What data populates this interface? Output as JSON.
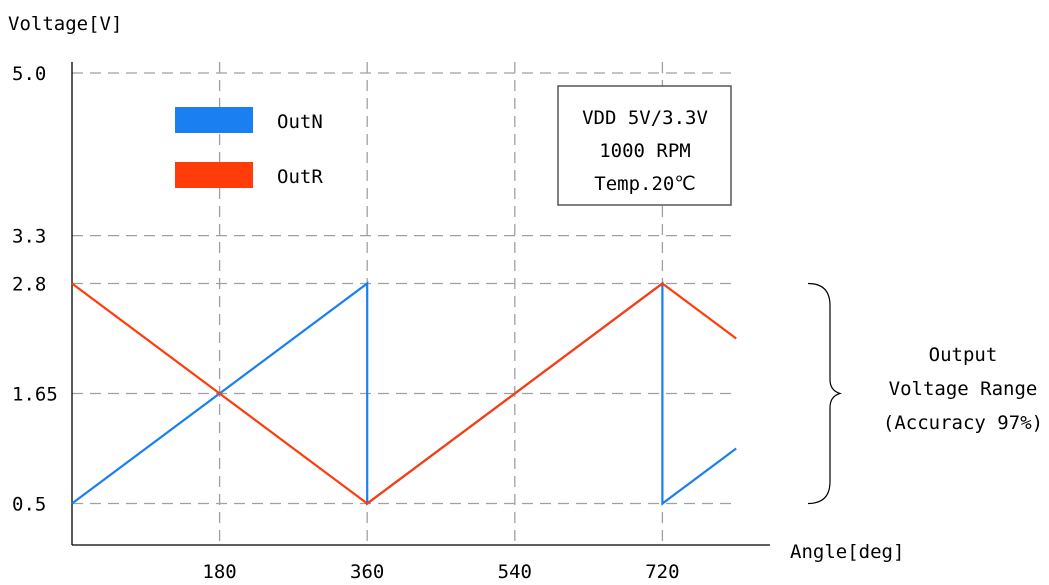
{
  "chart_data": {
    "type": "line",
    "ylabel": "Voltage[V]",
    "xlabel": "Angle[deg]",
    "xlim": [
      0,
      810
    ],
    "ylim": [
      0,
      5.0
    ],
    "x_ticks": [
      {
        "value": 180,
        "label": "180"
      },
      {
        "value": 360,
        "label": "360"
      },
      {
        "value": 540,
        "label": "540"
      },
      {
        "value": 720,
        "label": "720"
      }
    ],
    "y_ticks": [
      {
        "value": 5.0,
        "label": "5.0"
      },
      {
        "value": 3.3,
        "label": "3.3"
      },
      {
        "value": 2.8,
        "label": "2.8"
      },
      {
        "value": 1.65,
        "label": "1.65"
      },
      {
        "value": 0.5,
        "label": "0.5"
      }
    ],
    "grid": true,
    "legend_position": "top-left",
    "series": [
      {
        "name": "OutN",
        "color": "#1a7ff0",
        "points": [
          [
            0,
            0.5
          ],
          [
            360,
            2.8
          ],
          [
            360,
            0.5
          ],
          [
            720,
            2.8
          ],
          [
            720,
            0.5
          ],
          [
            810,
            1.075
          ]
        ]
      },
      {
        "name": "OutR",
        "color": "#ff3c0a",
        "points": [
          [
            0,
            2.8
          ],
          [
            360,
            0.5
          ],
          [
            720,
            2.8
          ],
          [
            720,
            2.8
          ],
          [
            810,
            2.225
          ]
        ]
      }
    ],
    "conditions": [
      "VDD 5V/3.3V",
      "1000 RPM",
      "Temp.20℃"
    ],
    "range_annotation": {
      "from": 0.5,
      "to": 2.8,
      "lines": [
        "Output",
        "Voltage Range",
        "(Accuracy 97%)"
      ]
    }
  }
}
